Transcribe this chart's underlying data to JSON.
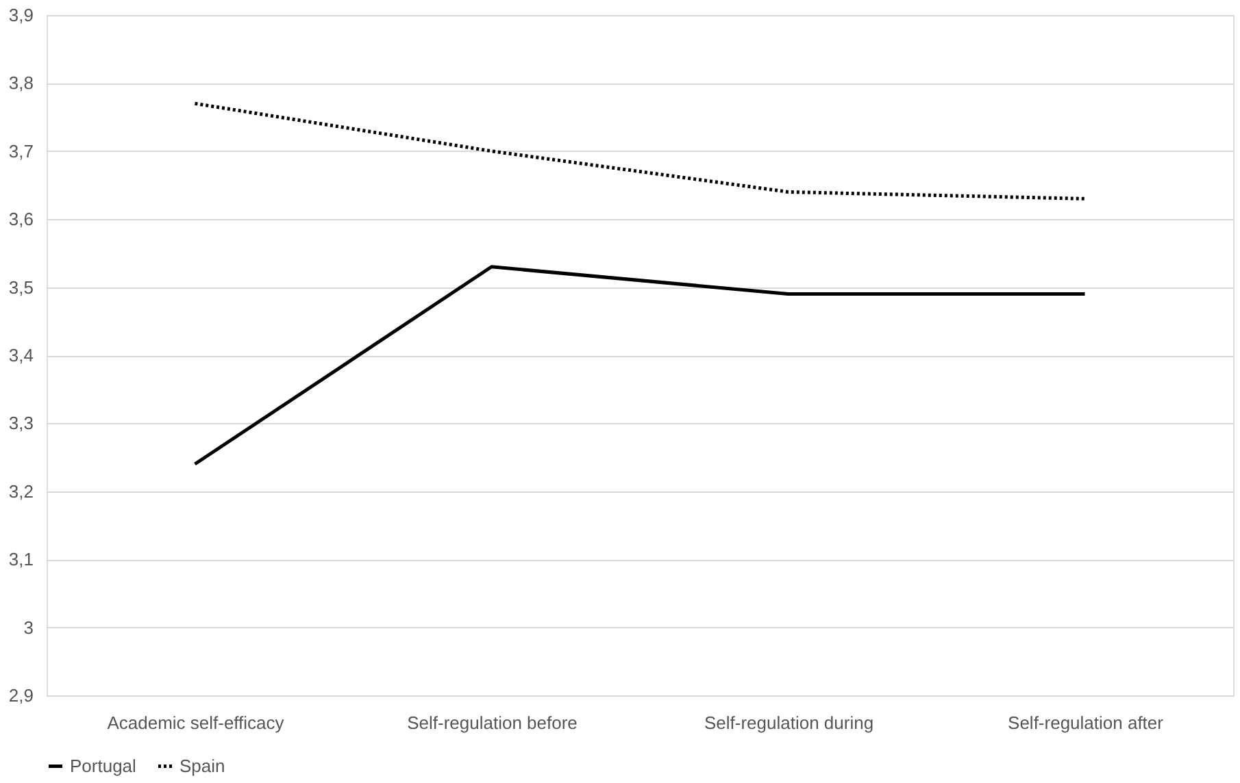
{
  "chart_data": {
    "type": "line",
    "categories": [
      "Academic self-efficacy",
      "Self-regulation before",
      "Self-regulation during",
      "Self-regulation after"
    ],
    "series": [
      {
        "name": "Portugal",
        "color": "#000000",
        "line_style": "solid",
        "values": [
          3.24,
          3.53,
          3.49,
          3.49
        ]
      },
      {
        "name": "Spain",
        "color": "#000000",
        "line_style": "dotted",
        "values": [
          3.77,
          3.7,
          3.64,
          3.63
        ]
      }
    ],
    "ylim": [
      2.9,
      3.9
    ],
    "yticks": [
      {
        "value": 2.9,
        "label": "2,9"
      },
      3,
      {
        "value": 3.1,
        "label": "3,1"
      },
      {
        "value": 3.2,
        "label": "3,2"
      },
      {
        "value": 3.3,
        "label": "3,3"
      },
      {
        "value": 3.4,
        "label": "3,4"
      },
      {
        "value": 3.5,
        "label": "3,5"
      },
      {
        "value": 3.6,
        "label": "3,6"
      },
      {
        "value": 3.7,
        "label": "3,7"
      },
      {
        "value": 3.8,
        "label": "3,8"
      },
      {
        "value": 3.9,
        "label": "3,9"
      }
    ],
    "grid": "y",
    "legend": "bottom",
    "marker": "none"
  }
}
